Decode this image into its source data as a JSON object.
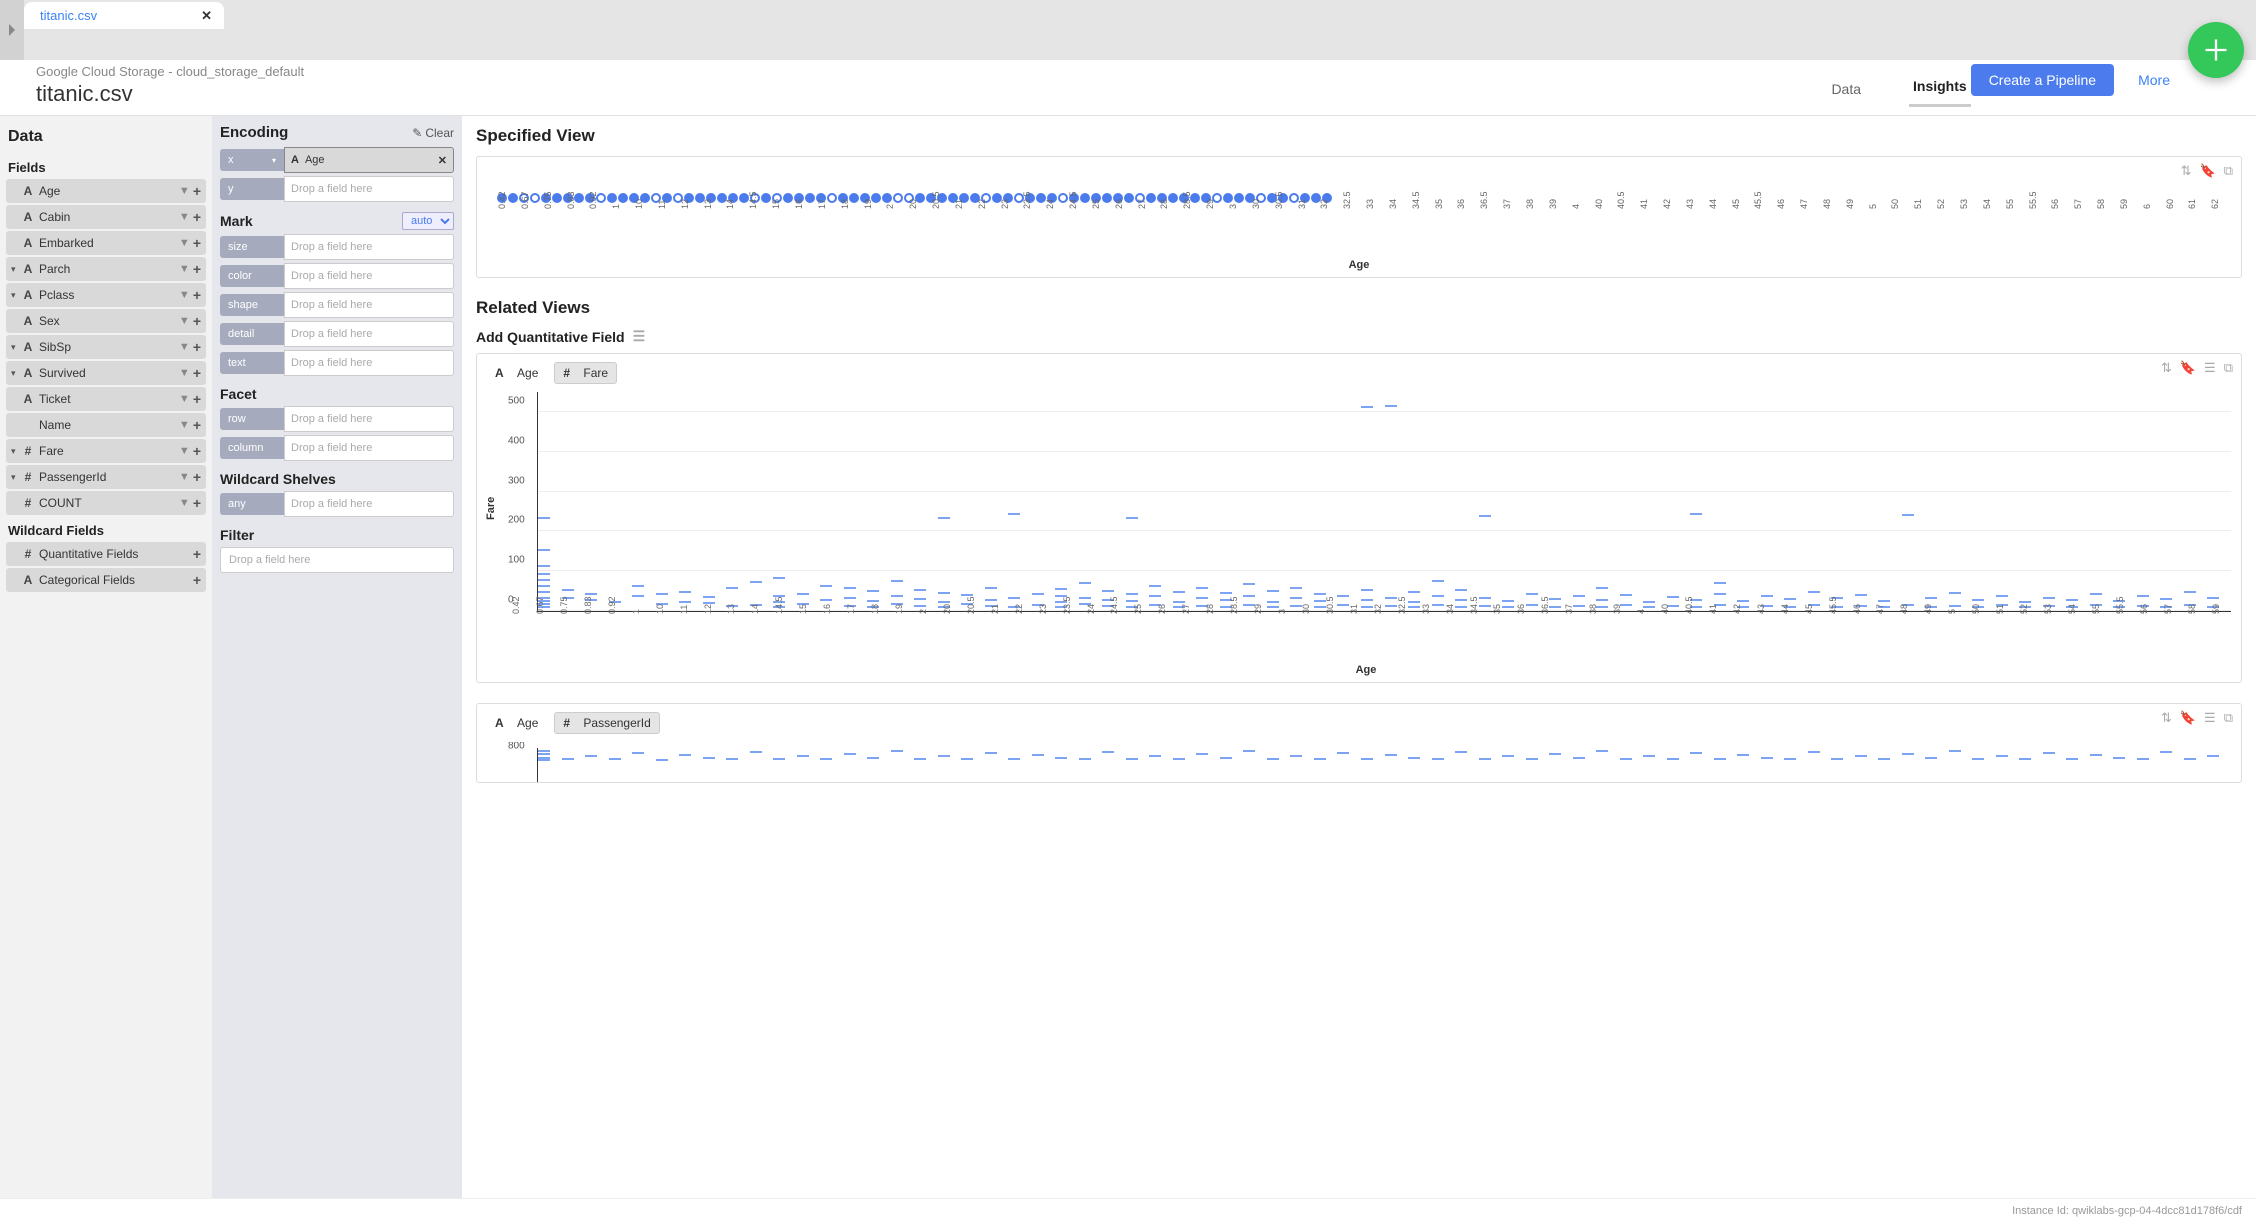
{
  "tab": {
    "name": "titanic.csv"
  },
  "storage_path": "Google Cloud Storage - cloud_storage_default",
  "file_title": "titanic.csv",
  "sub_tabs": {
    "data": "Data",
    "insights": "Insights"
  },
  "actions": {
    "create_pipeline": "Create a Pipeline",
    "more": "More"
  },
  "data_panel": {
    "title": "Data",
    "fields_title": "Fields",
    "fields": [
      {
        "caret": false,
        "type": "A",
        "name": "Age"
      },
      {
        "caret": false,
        "type": "A",
        "name": "Cabin"
      },
      {
        "caret": false,
        "type": "A",
        "name": "Embarked"
      },
      {
        "caret": true,
        "type": "A",
        "name": "Parch"
      },
      {
        "caret": true,
        "type": "A",
        "name": "Pclass"
      },
      {
        "caret": false,
        "type": "A",
        "name": "Sex"
      },
      {
        "caret": true,
        "type": "A",
        "name": "SibSp"
      },
      {
        "caret": true,
        "type": "A",
        "name": "Survived"
      },
      {
        "caret": false,
        "type": "A",
        "name": "Ticket"
      },
      {
        "caret": false,
        "type": "",
        "name": "Name"
      },
      {
        "caret": true,
        "type": "#",
        "name": "Fare"
      },
      {
        "caret": true,
        "type": "#",
        "name": "PassengerId"
      },
      {
        "caret": false,
        "type": "#",
        "name": "COUNT"
      }
    ],
    "wildcard_title": "Wildcard Fields",
    "wildcard_fields": [
      {
        "type": "#",
        "name": "Quantitative Fields"
      },
      {
        "type": "A",
        "name": "Categorical Fields"
      }
    ]
  },
  "encoding": {
    "title": "Encoding",
    "clear": "Clear",
    "x_label": "x",
    "x_value": "Age",
    "y_label": "y",
    "placeholder": "Drop a field here",
    "mark_title": "Mark",
    "mark_value": "auto",
    "channels": [
      "size",
      "color",
      "shape",
      "detail",
      "text"
    ],
    "facet_title": "Facet",
    "facet_rows": [
      "row",
      "column"
    ],
    "wildcard_title": "Wildcard Shelves",
    "any_label": "any",
    "filter_title": "Filter"
  },
  "views": {
    "specified_title": "Specified View",
    "axis_title": "Age",
    "strip_ticks": [
      "0.42",
      "0.67",
      "0.75",
      "0.83",
      "0.92",
      "1",
      "10",
      "11",
      "12",
      "13",
      "14",
      "14.5",
      "15",
      "16",
      "17",
      "18",
      "19",
      "2",
      "20",
      "20.5",
      "21",
      "22",
      "23",
      "23.5",
      "24",
      "24.5",
      "25",
      "26",
      "27",
      "28",
      "28.5",
      "29",
      "3",
      "30",
      "30.5",
      "31",
      "32",
      "32.5",
      "33",
      "34",
      "34.5",
      "35",
      "36",
      "36.5",
      "37",
      "38",
      "39",
      "4",
      "40",
      "40.5",
      "41",
      "42",
      "43",
      "44",
      "45",
      "45.5",
      "46",
      "47",
      "48",
      "49",
      "5",
      "50",
      "51",
      "52",
      "53",
      "54",
      "55",
      "55.5",
      "56",
      "57",
      "58",
      "59",
      "6",
      "60",
      "61",
      "62"
    ],
    "related_title": "Related Views",
    "add_quant_title": "Add Quantitative Field",
    "chart1": {
      "field_a": "Age",
      "field_b": "Fare",
      "y_label": "Fare",
      "y_ticks": [
        0,
        100,
        200,
        300,
        400,
        500
      ],
      "y_max": 550,
      "x_label": "Age",
      "x_ticks": [
        "0.42",
        "0.67",
        "0.75",
        "0.83",
        "0.92",
        "1",
        "10",
        "11",
        "12",
        "13",
        "14",
        "14.5",
        "15",
        "16",
        "17",
        "18",
        "19",
        "2",
        "20",
        "20.5",
        "21",
        "22",
        "23",
        "23.5",
        "24",
        "24.5",
        "25",
        "26",
        "27",
        "28",
        "28.5",
        "29",
        "3",
        "30",
        "30.5",
        "31",
        "32",
        "32.5",
        "33",
        "34",
        "34.5",
        "35",
        "36",
        "36.5",
        "37",
        "38",
        "39",
        "4",
        "40",
        "40.5",
        "41",
        "42",
        "43",
        "44",
        "45",
        "45.5",
        "46",
        "47",
        "48",
        "49",
        "5",
        "50",
        "51",
        "52",
        "53",
        "54",
        "55",
        "55.5",
        "56",
        "57",
        "58",
        "59"
      ],
      "marks": [
        [
          0,
          8
        ],
        [
          0,
          15
        ],
        [
          0,
          22
        ],
        [
          0,
          30
        ],
        [
          0,
          45
        ],
        [
          0,
          60
        ],
        [
          0,
          75
        ],
        [
          0,
          90
        ],
        [
          0,
          110
        ],
        [
          0,
          150
        ],
        [
          0,
          230
        ],
        [
          1,
          30
        ],
        [
          1,
          50
        ],
        [
          2,
          25
        ],
        [
          2,
          40
        ],
        [
          3,
          20
        ],
        [
          4,
          35
        ],
        [
          4,
          60
        ],
        [
          5,
          15
        ],
        [
          5,
          40
        ],
        [
          6,
          20
        ],
        [
          6,
          45
        ],
        [
          7,
          18
        ],
        [
          7,
          32
        ],
        [
          8,
          10
        ],
        [
          8,
          55
        ],
        [
          9,
          12
        ],
        [
          9,
          70
        ],
        [
          10,
          8
        ],
        [
          10,
          20
        ],
        [
          10,
          35
        ],
        [
          10,
          80
        ],
        [
          11,
          15
        ],
        [
          11,
          40
        ],
        [
          12,
          25
        ],
        [
          12,
          60
        ],
        [
          13,
          10
        ],
        [
          13,
          30
        ],
        [
          13,
          55
        ],
        [
          14,
          8
        ],
        [
          14,
          22
        ],
        [
          14,
          48
        ],
        [
          15,
          15
        ],
        [
          15,
          35
        ],
        [
          15,
          72
        ],
        [
          16,
          10
        ],
        [
          16,
          28
        ],
        [
          16,
          50
        ],
        [
          17,
          8
        ],
        [
          17,
          20
        ],
        [
          17,
          42
        ],
        [
          17,
          230
        ],
        [
          18,
          15
        ],
        [
          18,
          38
        ],
        [
          19,
          10
        ],
        [
          19,
          25
        ],
        [
          19,
          55
        ],
        [
          20,
          8
        ],
        [
          20,
          30
        ],
        [
          20,
          240
        ],
        [
          21,
          12
        ],
        [
          21,
          40
        ],
        [
          22,
          8
        ],
        [
          22,
          20
        ],
        [
          22,
          35
        ],
        [
          22,
          52
        ],
        [
          23,
          15
        ],
        [
          23,
          30
        ],
        [
          23,
          68
        ],
        [
          24,
          10
        ],
        [
          24,
          25
        ],
        [
          24,
          48
        ],
        [
          25,
          8
        ],
        [
          25,
          22
        ],
        [
          25,
          40
        ],
        [
          25,
          230
        ],
        [
          26,
          12
        ],
        [
          26,
          35
        ],
        [
          26,
          60
        ],
        [
          27,
          8
        ],
        [
          27,
          20
        ],
        [
          27,
          45
        ],
        [
          28,
          10
        ],
        [
          28,
          30
        ],
        [
          28,
          55
        ],
        [
          29,
          8
        ],
        [
          29,
          25
        ],
        [
          29,
          42
        ],
        [
          30,
          12
        ],
        [
          30,
          35
        ],
        [
          30,
          65
        ],
        [
          31,
          8
        ],
        [
          31,
          20
        ],
        [
          31,
          48
        ],
        [
          32,
          10
        ],
        [
          32,
          30
        ],
        [
          32,
          55
        ],
        [
          33,
          8
        ],
        [
          33,
          22
        ],
        [
          33,
          40
        ],
        [
          34,
          12
        ],
        [
          34,
          35
        ],
        [
          35,
          8
        ],
        [
          35,
          25
        ],
        [
          35,
          50
        ],
        [
          35,
          510
        ],
        [
          36,
          10
        ],
        [
          36,
          30
        ],
        [
          36,
          512
        ],
        [
          37,
          8
        ],
        [
          37,
          20
        ],
        [
          37,
          45
        ],
        [
          38,
          12
        ],
        [
          38,
          35
        ],
        [
          38,
          72
        ],
        [
          39,
          8
        ],
        [
          39,
          25
        ],
        [
          39,
          50
        ],
        [
          40,
          10
        ],
        [
          40,
          30
        ],
        [
          40,
          235
        ],
        [
          41,
          8
        ],
        [
          41,
          22
        ],
        [
          42,
          12
        ],
        [
          42,
          40
        ],
        [
          43,
          8
        ],
        [
          43,
          28
        ],
        [
          44,
          10
        ],
        [
          44,
          35
        ],
        [
          45,
          8
        ],
        [
          45,
          25
        ],
        [
          45,
          55
        ],
        [
          46,
          12
        ],
        [
          46,
          38
        ],
        [
          47,
          8
        ],
        [
          47,
          20
        ],
        [
          48,
          10
        ],
        [
          48,
          32
        ],
        [
          49,
          8
        ],
        [
          49,
          25
        ],
        [
          49,
          240
        ],
        [
          50,
          12
        ],
        [
          50,
          40
        ],
        [
          50,
          68
        ],
        [
          51,
          8
        ],
        [
          51,
          22
        ],
        [
          52,
          10
        ],
        [
          52,
          35
        ],
        [
          53,
          8
        ],
        [
          53,
          28
        ],
        [
          54,
          12
        ],
        [
          54,
          45
        ],
        [
          55,
          8
        ],
        [
          55,
          30
        ],
        [
          56,
          10
        ],
        [
          56,
          38
        ],
        [
          57,
          8
        ],
        [
          57,
          22
        ],
        [
          58,
          12
        ],
        [
          58,
          238
        ],
        [
          59,
          8
        ],
        [
          59,
          30
        ],
        [
          60,
          10
        ],
        [
          60,
          42
        ],
        [
          61,
          8
        ],
        [
          61,
          25
        ],
        [
          62,
          12
        ],
        [
          62,
          35
        ],
        [
          63,
          8
        ],
        [
          63,
          20
        ],
        [
          64,
          10
        ],
        [
          64,
          30
        ],
        [
          65,
          8
        ],
        [
          65,
          25
        ],
        [
          66,
          12
        ],
        [
          66,
          40
        ],
        [
          67,
          8
        ],
        [
          67,
          22
        ],
        [
          68,
          10
        ],
        [
          68,
          35
        ],
        [
          69,
          8
        ],
        [
          69,
          28
        ],
        [
          70,
          12
        ],
        [
          70,
          45
        ],
        [
          71,
          8
        ],
        [
          71,
          30
        ]
      ],
      "mark_color": "#5b8def"
    },
    "chart2": {
      "field_a": "Age",
      "field_b": "PassengerId",
      "y_ticks": [
        800
      ],
      "y_max": 900,
      "marks": [
        [
          0,
          750
        ],
        [
          0,
          780
        ],
        [
          0,
          820
        ],
        [
          0,
          850
        ],
        [
          1,
          760
        ],
        [
          2,
          800
        ],
        [
          3,
          770
        ],
        [
          4,
          830
        ],
        [
          5,
          750
        ],
        [
          6,
          810
        ],
        [
          7,
          780
        ],
        [
          8,
          760
        ],
        [
          9,
          840
        ],
        [
          10,
          770
        ],
        [
          11,
          800
        ],
        [
          12,
          760
        ],
        [
          13,
          820
        ],
        [
          14,
          780
        ],
        [
          15,
          850
        ],
        [
          16,
          760
        ],
        [
          17,
          800
        ],
        [
          18,
          770
        ],
        [
          19,
          830
        ],
        [
          20,
          760
        ],
        [
          21,
          810
        ],
        [
          22,
          780
        ],
        [
          23,
          760
        ],
        [
          24,
          840
        ],
        [
          25,
          770
        ],
        [
          26,
          800
        ],
        [
          27,
          760
        ],
        [
          28,
          820
        ],
        [
          29,
          780
        ],
        [
          30,
          850
        ],
        [
          31,
          760
        ],
        [
          32,
          800
        ],
        [
          33,
          770
        ],
        [
          34,
          830
        ],
        [
          35,
          760
        ],
        [
          36,
          810
        ],
        [
          37,
          780
        ],
        [
          38,
          760
        ],
        [
          39,
          840
        ],
        [
          40,
          770
        ],
        [
          41,
          800
        ],
        [
          42,
          760
        ],
        [
          43,
          820
        ],
        [
          44,
          780
        ],
        [
          45,
          850
        ],
        [
          46,
          760
        ],
        [
          47,
          800
        ],
        [
          48,
          770
        ],
        [
          49,
          830
        ],
        [
          50,
          760
        ],
        [
          51,
          810
        ],
        [
          52,
          780
        ],
        [
          53,
          760
        ],
        [
          54,
          840
        ],
        [
          55,
          770
        ],
        [
          56,
          800
        ],
        [
          57,
          760
        ],
        [
          58,
          820
        ],
        [
          59,
          780
        ],
        [
          60,
          850
        ],
        [
          61,
          760
        ],
        [
          62,
          800
        ],
        [
          63,
          770
        ],
        [
          64,
          830
        ],
        [
          65,
          760
        ],
        [
          66,
          810
        ],
        [
          67,
          780
        ],
        [
          68,
          760
        ],
        [
          69,
          840
        ],
        [
          70,
          770
        ],
        [
          71,
          800
        ]
      ]
    }
  },
  "footer": "Instance Id: qwiklabs-gcp-04-4dcc81d178f6/cdf",
  "colors": {
    "accent": "#4b7bec",
    "fab": "#34c759",
    "mark": "#5b8def"
  }
}
